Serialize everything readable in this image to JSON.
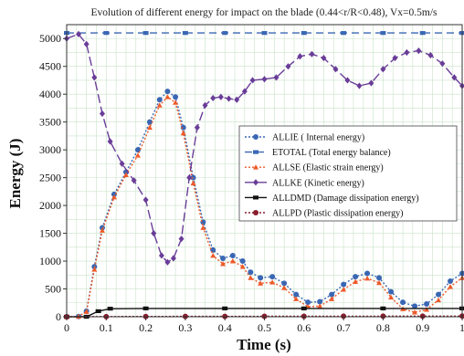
{
  "chart_data": {
    "type": "line",
    "title": "Evolution of different energy for impact on the blade (0.44<r/R<0.48), Vx=0.5m/s",
    "xlabel": "Time (s)",
    "ylabel": "Energy (J)",
    "xlim": [
      0,
      1
    ],
    "ylim": [
      0,
      5250
    ],
    "x_ticks": [
      0,
      0.1,
      0.2,
      0.3,
      0.4,
      0.5,
      0.6,
      0.7,
      0.8,
      0.9,
      1
    ],
    "x_tick_labels": [
      "0",
      "0.1",
      "0.2",
      "0.3",
      "0.4",
      "0.5",
      "0.6",
      "0.7",
      "0.8",
      "0.9",
      "1"
    ],
    "y_ticks": [
      0,
      500,
      1000,
      1500,
      2000,
      2500,
      3000,
      3500,
      4000,
      4500,
      5000
    ],
    "y_tick_labels": [
      "0",
      "500",
      "1000",
      "1500",
      "2000",
      "2500",
      "3000",
      "3500",
      "4000",
      "4500",
      "5000"
    ],
    "grid": true,
    "legend_position": "center-right",
    "series": [
      {
        "name": "ALLIE ( Internal energy)",
        "color": "#3a67b4",
        "dash": "2,2",
        "marker": "circle",
        "points": [
          [
            0,
            0
          ],
          [
            0.03,
            5
          ],
          [
            0.05,
            100
          ],
          [
            0.07,
            900
          ],
          [
            0.09,
            1600
          ],
          [
            0.12,
            2200
          ],
          [
            0.15,
            2600
          ],
          [
            0.18,
            3000
          ],
          [
            0.21,
            3500
          ],
          [
            0.235,
            3900
          ],
          [
            0.255,
            4050
          ],
          [
            0.275,
            3950
          ],
          [
            0.295,
            3400
          ],
          [
            0.32,
            2500
          ],
          [
            0.345,
            1700
          ],
          [
            0.37,
            1200
          ],
          [
            0.395,
            1050
          ],
          [
            0.42,
            1100
          ],
          [
            0.445,
            1000
          ],
          [
            0.465,
            800
          ],
          [
            0.49,
            700
          ],
          [
            0.52,
            720
          ],
          [
            0.55,
            600
          ],
          [
            0.58,
            400
          ],
          [
            0.61,
            260
          ],
          [
            0.64,
            270
          ],
          [
            0.67,
            400
          ],
          [
            0.7,
            580
          ],
          [
            0.73,
            720
          ],
          [
            0.76,
            780
          ],
          [
            0.79,
            700
          ],
          [
            0.82,
            450
          ],
          [
            0.85,
            260
          ],
          [
            0.88,
            190
          ],
          [
            0.91,
            230
          ],
          [
            0.94,
            400
          ],
          [
            0.97,
            640
          ],
          [
            1.0,
            780
          ]
        ]
      },
      {
        "name": "ETOTAL (Total energy balance)",
        "color": "#3a67b4",
        "dash": "8,5",
        "marker": "square",
        "points": [
          [
            0,
            5100
          ],
          [
            0.1,
            5100
          ],
          [
            0.2,
            5100
          ],
          [
            0.3,
            5100
          ],
          [
            0.4,
            5100
          ],
          [
            0.5,
            5100
          ],
          [
            0.6,
            5100
          ],
          [
            0.7,
            5100
          ],
          [
            0.8,
            5100
          ],
          [
            0.9,
            5100
          ],
          [
            1.0,
            5100
          ]
        ]
      },
      {
        "name": "ALLSE (Elastic strain energy)",
        "color": "#ee5a2a",
        "dash": "2,2",
        "marker": "triangle",
        "points": [
          [
            0,
            0
          ],
          [
            0.03,
            5
          ],
          [
            0.05,
            90
          ],
          [
            0.07,
            850
          ],
          [
            0.09,
            1550
          ],
          [
            0.12,
            2150
          ],
          [
            0.15,
            2550
          ],
          [
            0.18,
            2900
          ],
          [
            0.21,
            3400
          ],
          [
            0.235,
            3800
          ],
          [
            0.255,
            3950
          ],
          [
            0.275,
            3850
          ],
          [
            0.295,
            3300
          ],
          [
            0.32,
            2400
          ],
          [
            0.345,
            1600
          ],
          [
            0.37,
            1100
          ],
          [
            0.395,
            950
          ],
          [
            0.42,
            1000
          ],
          [
            0.445,
            900
          ],
          [
            0.465,
            700
          ],
          [
            0.49,
            600
          ],
          [
            0.52,
            620
          ],
          [
            0.55,
            520
          ],
          [
            0.58,
            320
          ],
          [
            0.61,
            180
          ],
          [
            0.64,
            190
          ],
          [
            0.67,
            320
          ],
          [
            0.7,
            490
          ],
          [
            0.73,
            630
          ],
          [
            0.76,
            690
          ],
          [
            0.79,
            610
          ],
          [
            0.82,
            350
          ],
          [
            0.85,
            140
          ],
          [
            0.88,
            80
          ],
          [
            0.91,
            130
          ],
          [
            0.94,
            300
          ],
          [
            0.97,
            540
          ],
          [
            1.0,
            700
          ]
        ]
      },
      {
        "name": "ALLKE (Kinetic energy)",
        "color": "#6a3d98",
        "dash": "10,4",
        "marker": "diamond",
        "points": [
          [
            0,
            5000
          ],
          [
            0.03,
            5080
          ],
          [
            0.05,
            4900
          ],
          [
            0.07,
            4300
          ],
          [
            0.09,
            3650
          ],
          [
            0.11,
            3150
          ],
          [
            0.14,
            2750
          ],
          [
            0.17,
            2450
          ],
          [
            0.2,
            2100
          ],
          [
            0.22,
            1500
          ],
          [
            0.24,
            1100
          ],
          [
            0.255,
            980
          ],
          [
            0.27,
            1050
          ],
          [
            0.29,
            1400
          ],
          [
            0.31,
            2500
          ],
          [
            0.33,
            3400
          ],
          [
            0.35,
            3800
          ],
          [
            0.37,
            3930
          ],
          [
            0.39,
            3950
          ],
          [
            0.41,
            3920
          ],
          [
            0.43,
            3900
          ],
          [
            0.45,
            4050
          ],
          [
            0.47,
            4250
          ],
          [
            0.5,
            4270
          ],
          [
            0.53,
            4300
          ],
          [
            0.56,
            4500
          ],
          [
            0.59,
            4680
          ],
          [
            0.62,
            4720
          ],
          [
            0.65,
            4650
          ],
          [
            0.68,
            4450
          ],
          [
            0.71,
            4250
          ],
          [
            0.74,
            4150
          ],
          [
            0.77,
            4200
          ],
          [
            0.8,
            4450
          ],
          [
            0.83,
            4650
          ],
          [
            0.86,
            4750
          ],
          [
            0.89,
            4780
          ],
          [
            0.92,
            4700
          ],
          [
            0.95,
            4550
          ],
          [
            0.98,
            4300
          ],
          [
            1.0,
            4150
          ]
        ]
      },
      {
        "name": "ALLDMD (Damage dissipation energy)",
        "color": "#111111",
        "dash": "none",
        "marker": "square-filled",
        "points": [
          [
            0,
            0
          ],
          [
            0.05,
            0
          ],
          [
            0.08,
            100
          ],
          [
            0.11,
            145
          ],
          [
            0.2,
            150
          ],
          [
            0.4,
            150
          ],
          [
            0.6,
            150
          ],
          [
            0.8,
            150
          ],
          [
            1.0,
            150
          ]
        ]
      },
      {
        "name": "ALLPD (Plastic dissipation energy)",
        "color": "#8a1c2c",
        "dash": "2,2",
        "marker": "circle-filled",
        "points": [
          [
            0,
            0
          ],
          [
            0.1,
            3
          ],
          [
            0.2,
            5
          ],
          [
            0.3,
            6
          ],
          [
            0.4,
            7
          ],
          [
            0.5,
            8
          ],
          [
            0.6,
            9
          ],
          [
            0.7,
            10
          ],
          [
            0.8,
            10
          ],
          [
            0.9,
            11
          ],
          [
            1.0,
            12
          ]
        ]
      }
    ]
  }
}
